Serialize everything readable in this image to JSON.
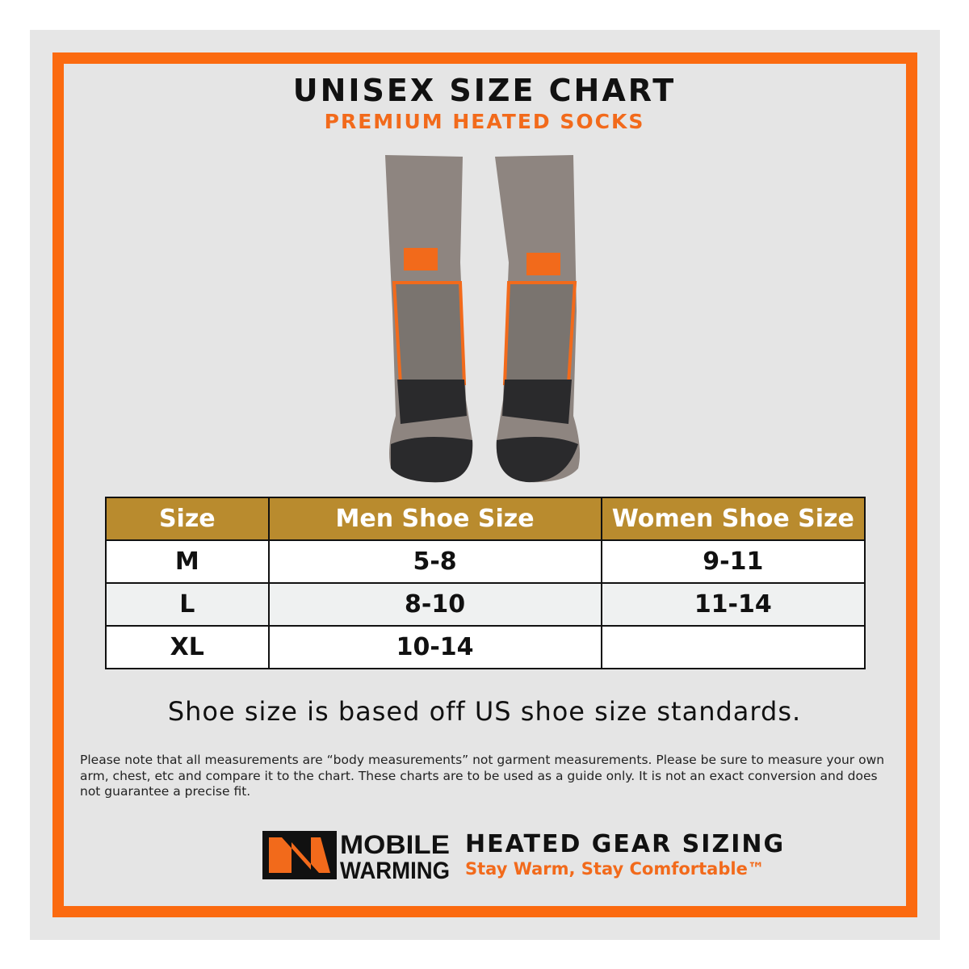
{
  "header": {
    "title": "UNISEX SIZE CHART",
    "subtitle": "PREMIUM HEATED SOCKS"
  },
  "colors": {
    "frame": "#fb6a10",
    "table_header": "#b98b2e",
    "accent": "#f26a1b"
  },
  "table": {
    "headers": [
      "Size",
      "Men Shoe Size",
      "Women Shoe Size"
    ],
    "rows": [
      [
        "M",
        "5-8",
        "9-11"
      ],
      [
        "L",
        "8-10",
        "11-14"
      ],
      [
        "XL",
        "10-14",
        ""
      ]
    ]
  },
  "note": "Shoe size is based off US shoe size standards.",
  "fine_print": "Please note that all measurements are “body measurements” not garment measurements. Please be sure to measure your own arm, chest, etc and compare it to the chart. These charts are to be used as a guide only. It is not an exact conversion and does not guarantee a precise fit.",
  "brand": {
    "logo_text": "MOBILE WARMING",
    "tagline_title": "HEATED GEAR SIZING",
    "tagline": "Stay Warm, Stay Comfortable™"
  }
}
